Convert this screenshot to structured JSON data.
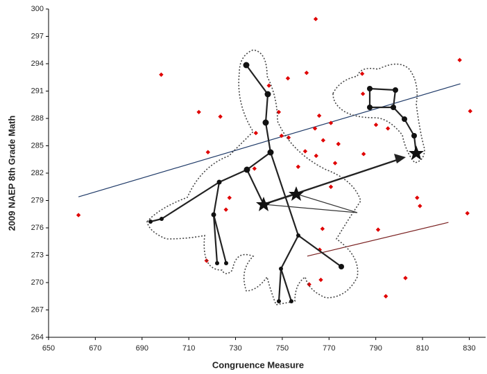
{
  "chart_data": {
    "type": "scatter",
    "x_label": "Congruence Measure",
    "y_label": "2009 NAEP 8th Grade Math",
    "xlim": [
      650,
      837
    ],
    "ylim": [
      264,
      300
    ],
    "xticks": [
      650,
      670,
      690,
      710,
      730,
      750,
      770,
      790,
      810,
      830
    ],
    "yticks": [
      264,
      267,
      270,
      273,
      276,
      279,
      282,
      285,
      288,
      291,
      294,
      297,
      300
    ],
    "series": [
      {
        "color": "#e00000",
        "x": [
          662.8,
          698.2,
          714.3,
          723.5,
          718.2,
          727.4,
          725.9,
          717.6,
          744.3,
          752.4,
          760.4,
          764.3,
          825.9,
          748.5,
          738.7,
          749.7,
          752.7,
          764.0,
          765.8,
          770.8,
          759.8,
          764.5,
          767.5,
          774.0,
          772.6,
          784.8,
          784.2,
          784.5,
          790.1,
          795.2,
          738.1,
          756.8,
          770.8,
          807.7,
          808.9,
          829.2,
          830.4,
          767.2,
          791.0,
          766.0,
          761.5,
          766.5,
          802.7,
          794.3
        ],
        "values": [
          277.4,
          292.8,
          288.7,
          288.2,
          284.3,
          279.3,
          278.0,
          272.4,
          291.6,
          292.4,
          293.0,
          298.9,
          294.4,
          288.7,
          286.4,
          286.1,
          285.9,
          286.9,
          288.3,
          287.5,
          284.4,
          283.9,
          285.6,
          285.2,
          283.1,
          284.1,
          292.9,
          290.7,
          287.3,
          286.9,
          282.5,
          282.7,
          280.5,
          279.3,
          278.4,
          277.6,
          288.8,
          275.9,
          275.8,
          273.6,
          269.8,
          270.3,
          270.5,
          268.5
        ]
      }
    ],
    "trend_lines": [
      {
        "color": "#1f3a68",
        "x": [
          662.8,
          826.2
        ],
        "values": [
          279.4,
          291.8
        ]
      },
      {
        "color": "#7a2020",
        "x": [
          760.7,
          821.1
        ],
        "values": [
          272.9,
          276.6
        ]
      }
    ]
  }
}
